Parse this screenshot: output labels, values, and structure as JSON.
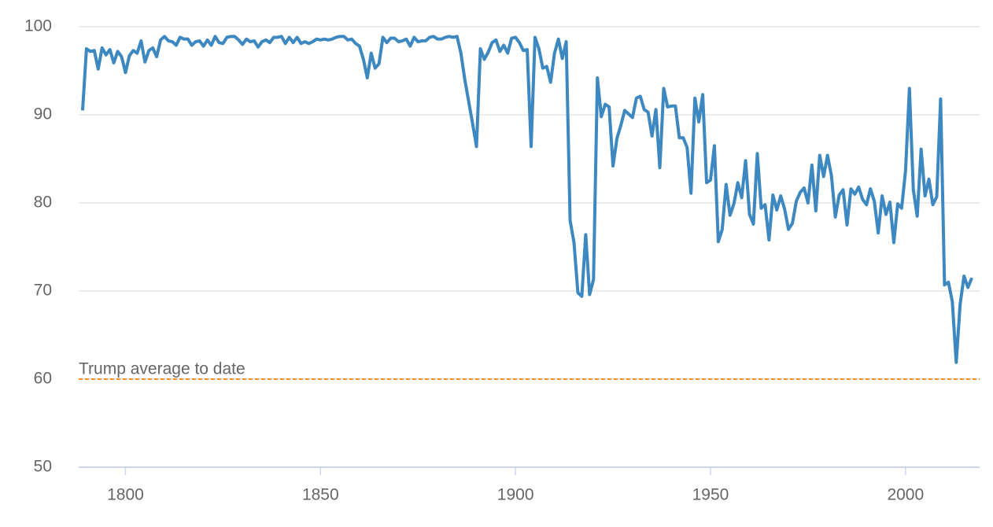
{
  "chart_data": {
    "type": "line",
    "x": [
      1789,
      1790,
      1791,
      1792,
      1793,
      1794,
      1795,
      1796,
      1797,
      1798,
      1799,
      1800,
      1801,
      1802,
      1803,
      1804,
      1805,
      1806,
      1807,
      1808,
      1809,
      1810,
      1811,
      1812,
      1813,
      1814,
      1815,
      1816,
      1817,
      1818,
      1819,
      1820,
      1821,
      1822,
      1823,
      1824,
      1825,
      1826,
      1827,
      1828,
      1829,
      1830,
      1831,
      1832,
      1833,
      1834,
      1835,
      1836,
      1837,
      1838,
      1839,
      1840,
      1841,
      1842,
      1843,
      1844,
      1845,
      1846,
      1847,
      1848,
      1849,
      1850,
      1851,
      1852,
      1853,
      1854,
      1855,
      1856,
      1857,
      1858,
      1859,
      1860,
      1861,
      1862,
      1863,
      1864,
      1865,
      1866,
      1867,
      1868,
      1869,
      1870,
      1871,
      1872,
      1873,
      1874,
      1875,
      1876,
      1877,
      1878,
      1879,
      1880,
      1881,
      1882,
      1883,
      1884,
      1885,
      1886,
      1887,
      1888,
      1889,
      1890,
      1891,
      1892,
      1893,
      1894,
      1895,
      1896,
      1897,
      1898,
      1899,
      1900,
      1901,
      1902,
      1903,
      1904,
      1905,
      1906,
      1907,
      1908,
      1909,
      1910,
      1911,
      1912,
      1913,
      1914,
      1915,
      1916,
      1917,
      1918,
      1919,
      1920,
      1921,
      1922,
      1923,
      1924,
      1925,
      1926,
      1927,
      1928,
      1929,
      1930,
      1931,
      1932,
      1933,
      1934,
      1935,
      1936,
      1937,
      1938,
      1939,
      1940,
      1941,
      1942,
      1943,
      1944,
      1945,
      1946,
      1947,
      1948,
      1949,
      1950,
      1951,
      1952,
      1953,
      1954,
      1955,
      1956,
      1957,
      1958,
      1959,
      1960,
      1961,
      1962,
      1963,
      1964,
      1965,
      1966,
      1967,
      1968,
      1969,
      1970,
      1971,
      1972,
      1973,
      1974,
      1975,
      1976,
      1977,
      1978,
      1979,
      1980,
      1981,
      1982,
      1983,
      1984,
      1985,
      1986,
      1987,
      1988,
      1989,
      1990,
      1991,
      1992,
      1993,
      1994,
      1995,
      1996,
      1997,
      1998,
      1999,
      2000,
      2001,
      2002,
      2003,
      2004,
      2005,
      2006,
      2007,
      2008,
      2009,
      2010,
      2011,
      2012,
      2013,
      2014,
      2015,
      2016,
      2017
    ],
    "series": [
      {
        "color": "#3d88c0",
        "values": [
          90.5,
          97.5,
          97.2,
          97.3,
          95.2,
          97.6,
          96.8,
          97.4,
          95.9,
          97.2,
          96.6,
          94.8,
          96.7,
          97.3,
          97.0,
          98.4,
          96.0,
          97.3,
          97.6,
          96.6,
          98.5,
          98.9,
          98.4,
          98.3,
          97.9,
          98.8,
          98.6,
          98.6,
          97.9,
          98.3,
          98.4,
          97.8,
          98.5,
          97.9,
          98.9,
          98.2,
          98.1,
          98.8,
          98.9,
          98.9,
          98.5,
          98.0,
          98.6,
          98.3,
          98.4,
          97.7,
          98.3,
          98.5,
          98.2,
          98.8,
          98.8,
          98.9,
          98.1,
          98.8,
          98.2,
          98.8,
          98.1,
          98.3,
          98.1,
          98.3,
          98.6,
          98.5,
          98.6,
          98.5,
          98.6,
          98.8,
          98.9,
          98.9,
          98.5,
          98.6,
          98.1,
          97.8,
          96.3,
          94.2,
          97.0,
          95.3,
          95.8,
          98.8,
          98.2,
          98.7,
          98.7,
          98.3,
          98.4,
          98.6,
          97.8,
          98.8,
          98.3,
          98.4,
          98.4,
          98.8,
          98.9,
          98.6,
          98.6,
          98.8,
          98.9,
          98.8,
          98.9,
          97.0,
          94.0,
          91.5,
          89.0,
          86.4,
          97.5,
          96.3,
          97.1,
          98.2,
          98.5,
          97.2,
          97.9,
          97.0,
          98.7,
          98.8,
          98.2,
          97.3,
          97.4,
          86.4,
          98.8,
          97.5,
          95.3,
          95.5,
          93.7,
          97.0,
          98.6,
          96.4,
          98.3,
          78.0,
          75.5,
          69.8,
          69.4,
          76.4,
          69.6,
          71.3,
          94.2,
          89.8,
          91.2,
          90.9,
          84.2,
          87.3,
          88.8,
          90.5,
          90.1,
          89.7,
          91.9,
          92.1,
          90.6,
          90.3,
          87.6,
          90.6,
          84.0,
          93.0,
          90.9,
          91.0,
          91.0,
          87.4,
          87.4,
          86.3,
          81.1,
          91.9,
          89.2,
          92.3,
          82.3,
          82.6,
          86.5,
          75.6,
          77.0,
          82.1,
          78.6,
          79.9,
          82.3,
          80.6,
          84.8,
          78.7,
          77.6,
          85.6,
          79.4,
          79.8,
          75.8,
          80.9,
          79.2,
          80.8,
          79.3,
          77.0,
          77.7,
          80.2,
          81.2,
          81.7,
          80.0,
          84.3,
          79.1,
          85.4,
          83.0,
          85.4,
          83.1,
          78.4,
          80.9,
          81.5,
          77.5,
          81.6,
          81.0,
          81.8,
          80.4,
          79.8,
          81.6,
          80.2,
          76.6,
          80.8,
          78.7,
          80.1,
          75.5,
          79.9,
          79.4,
          83.6,
          93.0,
          81.5,
          78.5,
          86.1,
          80.8,
          82.7,
          79.8,
          80.7,
          91.8,
          70.7,
          71.0,
          68.8,
          61.9,
          68.5,
          71.7,
          70.4,
          71.5
        ]
      }
    ],
    "xlim": [
      1788,
      2019
    ],
    "xticks": [
      1800,
      1850,
      1900,
      1950,
      2000
    ],
    "ylim": [
      50,
      100
    ],
    "yticks": [
      50,
      60,
      70,
      80,
      90,
      100
    ],
    "grid": true,
    "reference_lines": [
      {
        "value": 60,
        "label": "Trump average to date",
        "color": "#f28f1e"
      }
    ]
  }
}
